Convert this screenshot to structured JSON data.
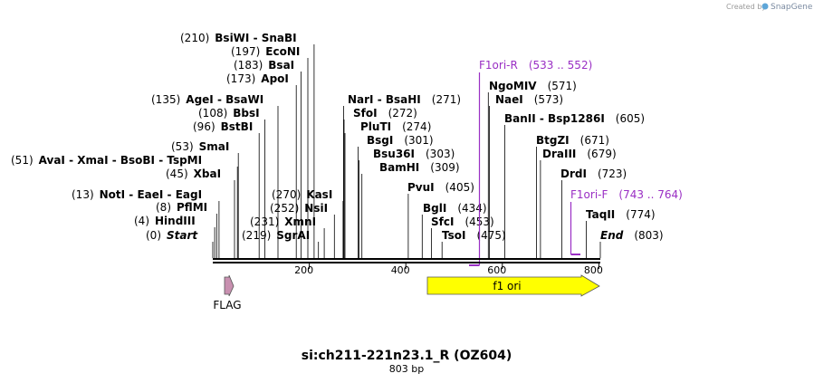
{
  "brand": {
    "created_by": "Created by",
    "name": "SnapGene"
  },
  "map": {
    "title": "si:ch211-221n23.1_R (OZ604)",
    "length_label": "803 bp",
    "length_bp": 803,
    "ticks": [
      {
        "bp": 200,
        "label": "200"
      },
      {
        "bp": 400,
        "label": "400"
      },
      {
        "bp": 600,
        "label": "600"
      },
      {
        "bp": 800,
        "label": "800"
      }
    ]
  },
  "sites": [
    {
      "name": "Start",
      "pos": "(0)",
      "bp": 0,
      "italic": true
    },
    {
      "name": "HindIII",
      "pos": "(4)",
      "bp": 4
    },
    {
      "name": "PflMI",
      "pos": "(8)",
      "bp": 8
    },
    {
      "name": "NotI - EaeI - EagI",
      "pos": "(13)",
      "bp": 13
    },
    {
      "name": "XbaI",
      "pos": "(45)",
      "bp": 45
    },
    {
      "name": "AvaI - XmaI - BsoBI - TspMI",
      "pos": "(51)",
      "bp": 51
    },
    {
      "name": "SmaI",
      "pos": "(53)",
      "bp": 53
    },
    {
      "name": "BstBI",
      "pos": "(96)",
      "bp": 96
    },
    {
      "name": "BbsI",
      "pos": "(108)",
      "bp": 108
    },
    {
      "name": "AgeI - BsaWI",
      "pos": "(135)",
      "bp": 135
    },
    {
      "name": "ApoI",
      "pos": "(173)",
      "bp": 173
    },
    {
      "name": "BsaI",
      "pos": "(183)",
      "bp": 183
    },
    {
      "name": "EcoNI",
      "pos": "(197)",
      "bp": 197
    },
    {
      "name": "BsiWI - SnaBI",
      "pos": "(210)",
      "bp": 210
    },
    {
      "name": "SgrAI",
      "pos": "(219)",
      "bp": 219
    },
    {
      "name": "XmnI",
      "pos": "(231)",
      "bp": 231
    },
    {
      "name": "NsiI",
      "pos": "(252)",
      "bp": 252
    },
    {
      "name": "KasI",
      "pos": "(270)",
      "bp": 270
    },
    {
      "name": "NarI - BsaHI",
      "pos": "(271)",
      "bp": 271
    },
    {
      "name": "SfoI",
      "pos": "(272)",
      "bp": 272
    },
    {
      "name": "PluTI",
      "pos": "(274)",
      "bp": 274
    },
    {
      "name": "BsgI",
      "pos": "(301)",
      "bp": 301
    },
    {
      "name": "Bsu36I",
      "pos": "(303)",
      "bp": 303
    },
    {
      "name": "BamHI",
      "pos": "(309)",
      "bp": 309
    },
    {
      "name": "PvuI",
      "pos": "(405)",
      "bp": 405
    },
    {
      "name": "BglI",
      "pos": "(434)",
      "bp": 434
    },
    {
      "name": "SfcI",
      "pos": "(453)",
      "bp": 453
    },
    {
      "name": "TsoI",
      "pos": "(475)",
      "bp": 475
    },
    {
      "name": "NgoMIV",
      "pos": "(571)",
      "bp": 571
    },
    {
      "name": "NaeI",
      "pos": "(573)",
      "bp": 573
    },
    {
      "name": "BanII - Bsp1286I",
      "pos": "(605)",
      "bp": 605
    },
    {
      "name": "BtgZI",
      "pos": "(671)",
      "bp": 671
    },
    {
      "name": "DraIII",
      "pos": "(679)",
      "bp": 679
    },
    {
      "name": "DrdI",
      "pos": "(723)",
      "bp": 723
    },
    {
      "name": "TaqII",
      "pos": "(774)",
      "bp": 774
    },
    {
      "name": "End",
      "pos": "(803)",
      "bp": 803,
      "italic": true
    }
  ],
  "primers": [
    {
      "name": "F1ori-R",
      "range": "(533 .. 552)",
      "start": 533,
      "end": 552,
      "direction": "reverse"
    },
    {
      "name": "F1ori-F",
      "range": "(743 .. 764)",
      "start": 743,
      "end": 764,
      "direction": "forward"
    }
  ],
  "features": [
    {
      "name": "f1 ori",
      "start": 444,
      "end": 803,
      "color": "#ffff00",
      "direction": "forward"
    },
    {
      "name": "FLAG",
      "start": 24,
      "end": 47,
      "color": "#c890b0",
      "direction": "forward"
    }
  ],
  "colors": {
    "primer": "#9a2fc4",
    "backbone": "#000000"
  }
}
